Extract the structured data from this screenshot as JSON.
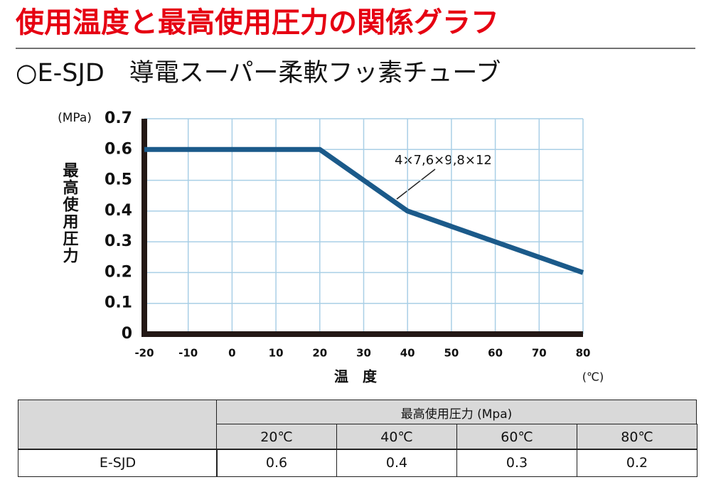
{
  "header": {
    "title": "使用温度と最高使用圧力の関係グラフ",
    "subtitle": "○E-SJD　導電スーパー柔軟フッ素チューブ"
  },
  "chart_data": {
    "type": "line",
    "x": [
      -20,
      20,
      40,
      80
    ],
    "series": [
      {
        "name": "4×7,6×9,8×12",
        "color": "#1b5a8a",
        "values": [
          0.6,
          0.6,
          0.4,
          0.2
        ]
      }
    ],
    "annotation": "4×7,6×9,8×12",
    "ylabel": "最高使用圧力",
    "yunit": "(MPa)",
    "xlabel": "温　度",
    "xunit": "(℃)",
    "xlim": [
      -20,
      80
    ],
    "xticks": [
      -20,
      -10,
      0,
      10,
      20,
      30,
      40,
      50,
      60,
      70,
      80
    ],
    "ylim": [
      0,
      0.7
    ],
    "yticks": [
      0,
      0.1,
      0.2,
      0.3,
      0.4,
      0.5,
      0.6,
      0.7
    ],
    "grid": true
  },
  "table": {
    "group_header": "最高使用圧力 (Mpa)",
    "columns": [
      "20℃",
      "40℃",
      "60℃",
      "80℃"
    ],
    "rows": [
      [
        "E-SJD",
        0.6,
        0.4,
        0.3,
        0.2
      ]
    ]
  }
}
